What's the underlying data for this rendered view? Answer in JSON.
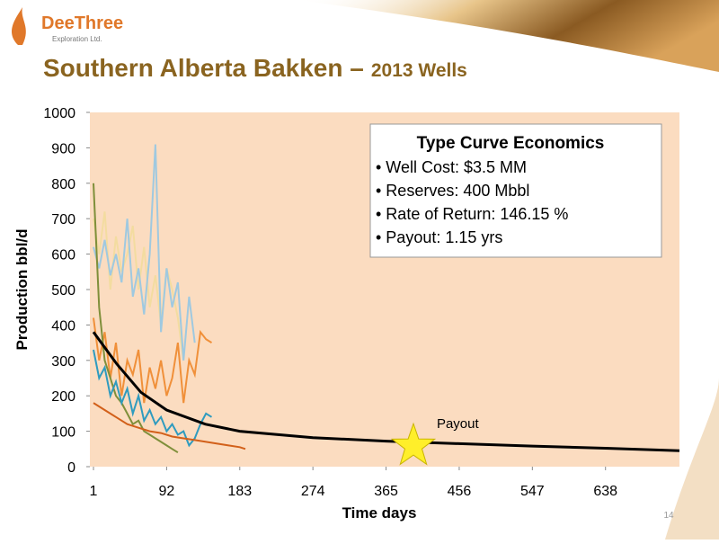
{
  "logo": {
    "name": "DeeThree",
    "subtitle": "Exploration Ltd."
  },
  "slide_title": {
    "main": "Southern Alberta Bakken –",
    "sub": "2013 Wells"
  },
  "page_number": "14",
  "chart_data": {
    "type": "line",
    "x_label": "Time days",
    "y_label": "Production bbl/d",
    "xlim": [
      1,
      730
    ],
    "ylim": [
      0,
      1000
    ],
    "xticks": [
      1,
      92,
      183,
      274,
      365,
      456,
      547,
      638
    ],
    "yticks": [
      0,
      100,
      200,
      300,
      400,
      500,
      600,
      700,
      800,
      900,
      1000
    ],
    "series": [
      {
        "color": "#f3dca0",
        "x": [
          1,
          8,
          15,
          22,
          29,
          36,
          43,
          50,
          57,
          64,
          71,
          78,
          85,
          92,
          99,
          106,
          113
        ],
        "values": [
          700,
          600,
          720,
          500,
          650,
          550,
          600,
          680,
          500,
          620,
          450,
          540,
          400,
          560,
          500,
          420,
          300
        ]
      },
      {
        "color": "#9fc9e0",
        "x": [
          1,
          8,
          15,
          22,
          29,
          36,
          43,
          50,
          57,
          64,
          71,
          78,
          85,
          92,
          99,
          106,
          113,
          120,
          127
        ],
        "values": [
          620,
          560,
          640,
          540,
          600,
          520,
          700,
          480,
          560,
          430,
          600,
          910,
          380,
          560,
          450,
          520,
          300,
          480,
          350
        ]
      },
      {
        "color": "#f0903a",
        "x": [
          1,
          8,
          15,
          22,
          29,
          36,
          43,
          50,
          57,
          64,
          71,
          78,
          85,
          92,
          99,
          106,
          113,
          120,
          127,
          134,
          141,
          148
        ],
        "values": [
          420,
          300,
          380,
          250,
          350,
          200,
          300,
          260,
          330,
          180,
          280,
          220,
          300,
          200,
          250,
          350,
          180,
          300,
          260,
          380,
          360,
          350
        ]
      },
      {
        "color": "#7f8f3a",
        "x": [
          1,
          8,
          15,
          22,
          29,
          36,
          43,
          50,
          57,
          64,
          71,
          78,
          85,
          92,
          99,
          106
        ],
        "values": [
          800,
          450,
          300,
          250,
          200,
          180,
          150,
          120,
          130,
          100,
          90,
          80,
          70,
          60,
          50,
          40
        ]
      },
      {
        "color": "#2f9bbf",
        "x": [
          1,
          8,
          15,
          22,
          29,
          36,
          43,
          50,
          57,
          64,
          71,
          78,
          85,
          92,
          99,
          106,
          113,
          120,
          127,
          134,
          141,
          148
        ],
        "values": [
          330,
          250,
          280,
          200,
          240,
          180,
          220,
          150,
          200,
          130,
          160,
          120,
          140,
          100,
          120,
          90,
          100,
          60,
          80,
          120,
          150,
          140
        ]
      },
      {
        "color": "#d2601a",
        "x": [
          1,
          15,
          29,
          43,
          57,
          71,
          85,
          99,
          113,
          127,
          141,
          155,
          169,
          183,
          190
        ],
        "values": [
          180,
          160,
          140,
          120,
          110,
          100,
          95,
          85,
          80,
          75,
          70,
          65,
          60,
          55,
          50
        ]
      },
      {
        "color": "#000000",
        "x": [
          1,
          30,
          60,
          92,
          140,
          183,
          274,
          365,
          456,
          547,
          638,
          730
        ],
        "values": [
          380,
          290,
          210,
          160,
          120,
          100,
          82,
          72,
          65,
          58,
          52,
          45
        ]
      }
    ],
    "payout": {
      "label": "Payout",
      "x": 399,
      "y": 58
    },
    "annotation_box": {
      "title": "Type Curve Economics",
      "items": [
        "• Well Cost: $3.5 MM",
        "• Reserves: 400 Mbbl",
        "• Rate of Return:  146.15 %",
        "• Payout:  1.15 yrs"
      ]
    }
  }
}
